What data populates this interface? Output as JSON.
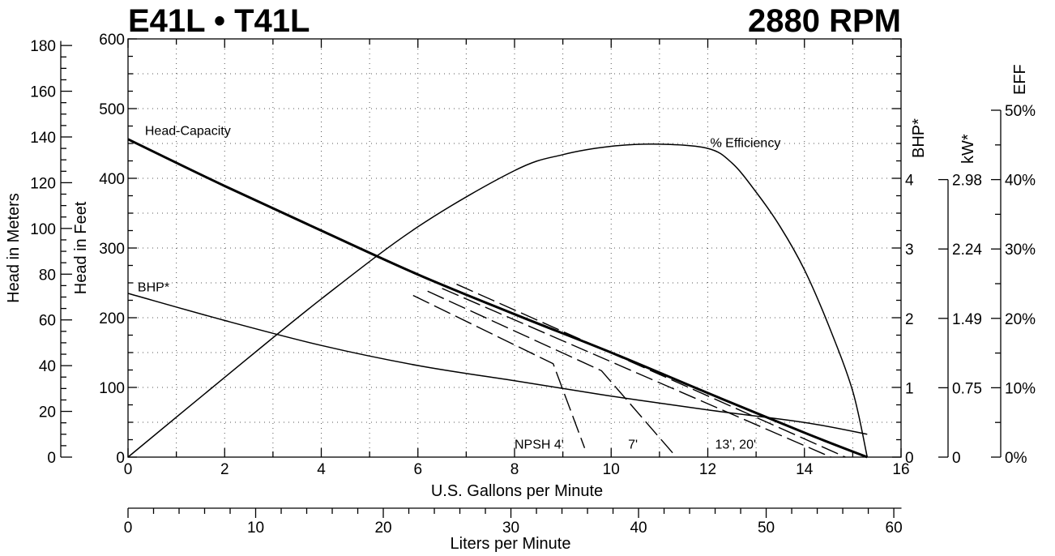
{
  "chart_data": {
    "type": "line",
    "title": "E41L • T41L",
    "subtitle": "2880 RPM",
    "xlabel": "U.S. Gallons per Minute",
    "x2label": "Liters per Minute",
    "ylabel_left": "Head in Feet",
    "ylabel_left2": "Head in Meters",
    "ylabel_right": "BHP*",
    "ylabel_right2": "kW*",
    "ylabel_right3": "EFF",
    "xlim": [
      0,
      16
    ],
    "ylim": [
      0,
      600
    ],
    "grid": true,
    "x_ticks": [
      "0",
      "2",
      "4",
      "6",
      "8",
      "10",
      "12",
      "14",
      "16"
    ],
    "y_ticks": [
      "0",
      "100",
      "200",
      "300",
      "400",
      "500",
      "600"
    ],
    "meter_ticks": [
      "0",
      "20",
      "40",
      "60",
      "80",
      "100",
      "120",
      "140",
      "160",
      "180"
    ],
    "bhp_ticks": [
      "0",
      "1",
      "2",
      "3",
      "4"
    ],
    "kw_ticks": [
      "0",
      "0.75",
      "1.49",
      "2.24",
      "2.98"
    ],
    "eff_ticks": [
      "0%",
      "10%",
      "20%",
      "30%",
      "40%",
      "50%"
    ],
    "lpm_ticks": [
      "0",
      "10",
      "20",
      "30",
      "40",
      "50",
      "60"
    ],
    "series": [
      {
        "name": "Head-Capacity",
        "style": "solid-thick",
        "x": [
          0,
          2,
          4,
          6,
          8,
          10,
          12,
          14,
          15.3
        ],
        "y": [
          456,
          389,
          325,
          262,
          205,
          150,
          92,
          35,
          0
        ]
      },
      {
        "name": "% Efficiency",
        "style": "solid",
        "axis": "eff",
        "x": [
          0,
          2,
          4,
          6,
          8,
          9,
          10,
          11,
          12,
          12.5,
          13,
          13.5,
          14,
          14.5,
          15,
          15.3
        ],
        "y": [
          0,
          11.5,
          22.8,
          33.2,
          41.3,
          43.6,
          44.8,
          45.1,
          44.5,
          42.4,
          38.2,
          33.2,
          27,
          19,
          9.5,
          0
        ]
      },
      {
        "name": "BHP*",
        "style": "solid",
        "axis": "bhp",
        "x": [
          0,
          2,
          4,
          6,
          8,
          10,
          12,
          14,
          15.3
        ],
        "y": [
          2.36,
          1.97,
          1.61,
          1.32,
          1.1,
          0.88,
          0.68,
          0.5,
          0.33
        ]
      },
      {
        "name": "NPSH 4'",
        "style": "dashed",
        "x": [
          5.9,
          8.8,
          9.45
        ],
        "y": [
          232,
          134,
          13
        ]
      },
      {
        "name": "7'",
        "style": "dashed",
        "x": [
          6.2,
          9.8,
          11.35
        ],
        "y": [
          238,
          124,
          0
        ]
      },
      {
        "name": "13', 20'",
        "style": "dashed",
        "x": [
          6.5,
          14.55
        ],
        "y": [
          242,
          0
        ]
      },
      {
        "name": "13', 20'",
        "style": "dashed",
        "x": [
          6.8,
          14.85
        ],
        "y": [
          248,
          0
        ]
      }
    ],
    "annotations": [
      {
        "text": "Head-Capacity",
        "x": 0.35,
        "y": 462
      },
      {
        "text": "% Efficiency",
        "x": 12.05,
        "y": 445
      },
      {
        "text": "BHP*",
        "x": 0.2,
        "y": 238
      },
      {
        "text": "NPSH 4'",
        "x": 8.0,
        "y": 12
      },
      {
        "text": "7'",
        "x": 10.35,
        "y": 12
      },
      {
        "text": "13', 20'",
        "x": 12.15,
        "y": 12
      }
    ]
  }
}
